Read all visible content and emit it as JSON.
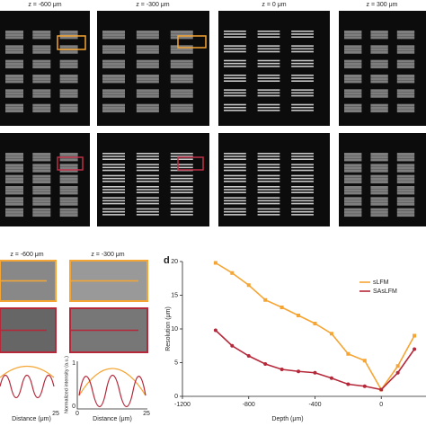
{
  "figure": {
    "top_labels": [
      "z = -600 μm",
      "z = -300 μm",
      "z = 0 μm",
      "z = 300 μm"
    ],
    "bottom_left": {
      "labels": [
        "z = -600 μm",
        "z = -300 μm"
      ],
      "y_label": "Normalized intensity (a.u.)",
      "x_label": "Distance (μm)",
      "tick_25": "25",
      "tick_0": "0",
      "tick_1": "1"
    }
  },
  "chart_data": {
    "type": "line",
    "panel_label": "d",
    "x_label": "Depth (μm)",
    "y_label": "Resolution (μm)",
    "x": [
      -1000,
      -900,
      -800,
      -700,
      -600,
      -500,
      -400,
      -300,
      -200,
      -100,
      0,
      100,
      200
    ],
    "series": [
      {
        "name": "sLFM",
        "color": "#f5a533",
        "marker": "square",
        "values": [
          19.8,
          18.3,
          16.5,
          14.3,
          13.2,
          12,
          10.8,
          9.3,
          6.3,
          5.3,
          1,
          4.5,
          9
        ]
      },
      {
        "name": "SAsLFM",
        "color": "#b5283a",
        "marker": "circle",
        "values": [
          9.8,
          7.5,
          6,
          4.8,
          4,
          3.7,
          3.5,
          2.7,
          1.8,
          1.5,
          1,
          3.5,
          7
        ]
      }
    ],
    "xlim": [
      -1200,
      270
    ],
    "ylim": [
      0,
      20
    ],
    "xticks": [
      -1200,
      -800,
      -400,
      0
    ],
    "yticks": [
      0,
      5,
      10,
      15,
      20
    ],
    "legend": "upper right"
  }
}
